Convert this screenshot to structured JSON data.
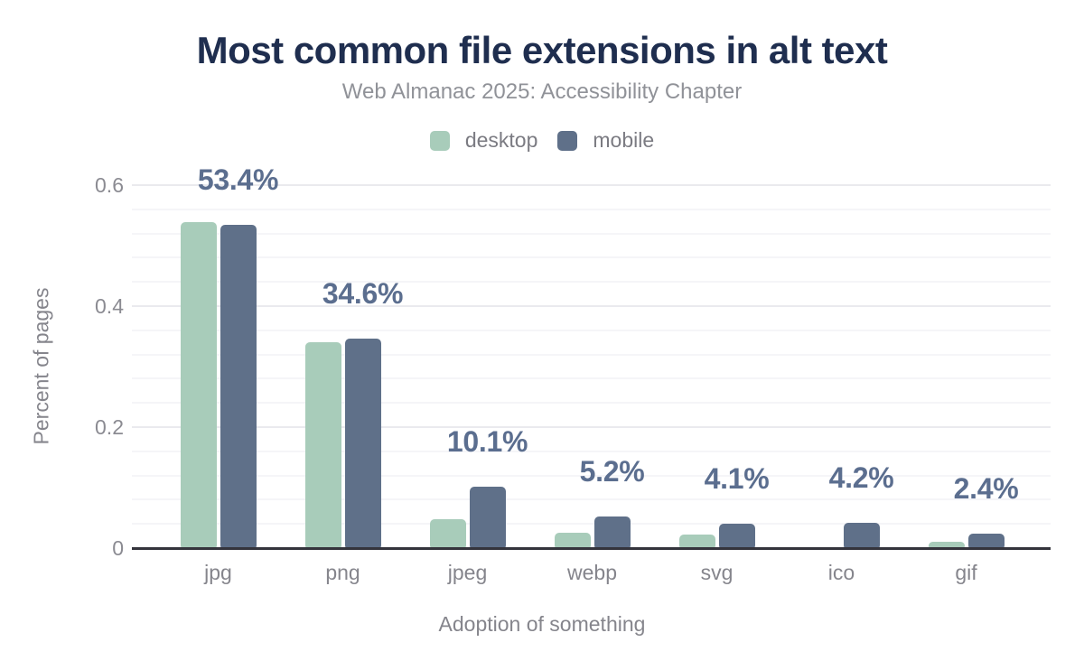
{
  "header": {
    "title": "Most common file extensions in alt text",
    "subtitle": "Web Almanac 2025: Accessibility Chapter"
  },
  "legend": {
    "items": [
      {
        "label": "desktop",
        "color": "#a8ccba"
      },
      {
        "label": "mobile",
        "color": "#5f7089"
      }
    ]
  },
  "chart_data": {
    "type": "bar",
    "title": "Most common file extensions in alt text",
    "subtitle": "Web Almanac 2025: Accessibility Chapter",
    "xlabel": "Adoption of something",
    "ylabel": "Percent of pages",
    "categories": [
      "jpg",
      "png",
      "jpeg",
      "webp",
      "svg",
      "ico",
      "gif"
    ],
    "series": [
      {
        "name": "desktop",
        "color": "#a8ccba",
        "values": [
          0.539,
          0.341,
          0.048,
          0.026,
          0.023,
          0.0,
          0.01
        ]
      },
      {
        "name": "mobile",
        "color": "#5f7089",
        "values": [
          0.534,
          0.346,
          0.101,
          0.052,
          0.041,
          0.042,
          0.024
        ]
      }
    ],
    "data_labels": [
      "53.4%",
      "34.6%",
      "10.1%",
      "5.2%",
      "4.1%",
      "4.2%",
      "2.4%"
    ],
    "data_labels_series": "mobile",
    "ylim": [
      0,
      0.6
    ],
    "y_ticks": [
      0,
      0.2,
      0.4,
      0.6
    ],
    "y_tick_labels": [
      "0",
      "0.2",
      "0.4",
      "0.6"
    ],
    "minor_grid_step": 0.04,
    "grid": true,
    "legend_position": "top"
  },
  "colors": {
    "background": "#ffffff",
    "title_text": "#1f2e4f",
    "subtitle_text": "#909298",
    "legend_text": "#7b7b82",
    "axis_text": "#85858c",
    "tick_text": "#8b8b92",
    "data_label_text": "#5b6e8f",
    "axis_line": "#34343c",
    "grid_major": "#eaeaee",
    "grid_minor": "#f5f5f8",
    "desktop_series": "#a8ccba",
    "mobile_series": "#5f7089"
  }
}
